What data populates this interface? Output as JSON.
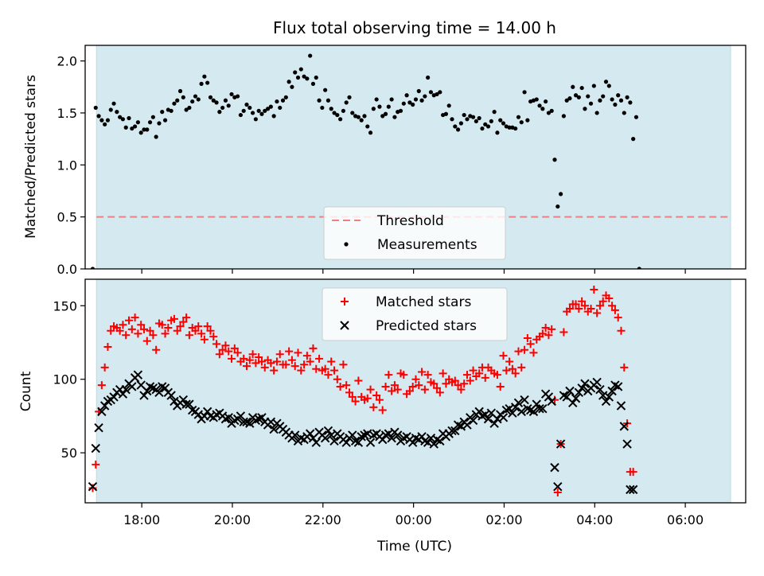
{
  "chart_data": [
    {
      "type": "scatter",
      "title": "Flux total observing time = 14.00 h",
      "xlabel": "",
      "ylabel": "Matched/Predicted stars",
      "xlim": [
        "16:45",
        "07:20"
      ],
      "ylim": [
        0,
        2.15
      ],
      "yticks": [
        "0.0",
        "0.5",
        "1.0",
        "1.5",
        "2.0"
      ],
      "shaded_interval": [
        "17:00",
        "07:00"
      ],
      "shade_color": "#d4eaf0",
      "threshold": {
        "name": "Threshold",
        "value": 0.5,
        "color": "#f08080"
      },
      "legend": {
        "position": "lower-center",
        "entries": [
          "Threshold",
          "Measurements"
        ]
      },
      "series": [
        {
          "name": "Measurements",
          "color": "#000000",
          "x_start": "16:55",
          "x_step_min": 4,
          "values": [
            0.0,
            1.55,
            1.47,
            1.43,
            1.39,
            1.43,
            1.53,
            1.59,
            1.51,
            1.46,
            1.44,
            1.36,
            1.45,
            1.35,
            1.37,
            1.41,
            1.31,
            1.34,
            1.34,
            1.41,
            1.46,
            1.27,
            1.4,
            1.51,
            1.43,
            1.53,
            1.52,
            1.59,
            1.62,
            1.71,
            1.65,
            1.53,
            1.55,
            1.61,
            1.66,
            1.63,
            1.78,
            1.85,
            1.79,
            1.65,
            1.62,
            1.6,
            1.51,
            1.55,
            1.62,
            1.57,
            1.68,
            1.65,
            1.66,
            1.48,
            1.52,
            1.58,
            1.55,
            1.5,
            1.44,
            1.52,
            1.49,
            1.52,
            1.54,
            1.56,
            1.47,
            1.61,
            1.55,
            1.62,
            1.65,
            1.8,
            1.75,
            1.89,
            1.84,
            1.92,
            1.85,
            1.83,
            2.05,
            1.78,
            1.84,
            1.62,
            1.55,
            1.72,
            1.62,
            1.54,
            1.5,
            1.48,
            1.44,
            1.52,
            1.6,
            1.65,
            1.5,
            1.47,
            1.46,
            1.43,
            1.47,
            1.37,
            1.31,
            1.54,
            1.63,
            1.56,
            1.47,
            1.49,
            1.56,
            1.63,
            1.46,
            1.51,
            1.52,
            1.59,
            1.67,
            1.6,
            1.58,
            1.63,
            1.71,
            1.62,
            1.66,
            1.84,
            1.7,
            1.67,
            1.68,
            1.7,
            1.48,
            1.49,
            1.57,
            1.44,
            1.37,
            1.34,
            1.4,
            1.48,
            1.44,
            1.47,
            1.46,
            1.42,
            1.45,
            1.35,
            1.39,
            1.37,
            1.42,
            1.51,
            1.31,
            1.43,
            1.4,
            1.37,
            1.36,
            1.36,
            1.35,
            1.46,
            1.41,
            1.7,
            1.43,
            1.61,
            1.62,
            1.63,
            1.57,
            1.54,
            1.61,
            1.5,
            1.52,
            1.05,
            0.6,
            0.72,
            1.47,
            1.62,
            1.64,
            1.75,
            1.67,
            1.65,
            1.74,
            1.54,
            1.66,
            1.59,
            1.76,
            1.5,
            1.62,
            1.66,
            1.8,
            1.76,
            1.63,
            1.58,
            1.67,
            1.62,
            1.5,
            1.65,
            1.6,
            1.25,
            1.46,
            0.0
          ]
        }
      ]
    },
    {
      "type": "scatter",
      "title": "",
      "xlabel": "Time (UTC)",
      "ylabel": "Count",
      "xlim": [
        "16:45",
        "07:20"
      ],
      "ylim": [
        16,
        168
      ],
      "yticks": [
        "50",
        "100",
        "150"
      ],
      "xticks": [
        "18:00",
        "20:00",
        "22:00",
        "00:00",
        "02:00",
        "04:00",
        "06:00"
      ],
      "shaded_interval": [
        "17:00",
        "07:00"
      ],
      "shade_color": "#d4eaf0",
      "legend": {
        "position": "upper-center",
        "entries": [
          "Matched stars",
          "Predicted stars"
        ]
      },
      "series": [
        {
          "name": "Matched stars",
          "marker": "+",
          "color": "#ff0000",
          "x_start": "16:55",
          "x_step_min": 4,
          "values": [
            26,
            42,
            78,
            96,
            108,
            122,
            133,
            136,
            135,
            133,
            137,
            130,
            140,
            134,
            142,
            131,
            137,
            134,
            126,
            133,
            130,
            120,
            138,
            137,
            131,
            135,
            140,
            141,
            133,
            136,
            139,
            142,
            130,
            135,
            133,
            136,
            131,
            127,
            136,
            133,
            129,
            124,
            117,
            120,
            123,
            119,
            114,
            121,
            118,
            112,
            114,
            109,
            113,
            117,
            111,
            115,
            112,
            108,
            113,
            111,
            106,
            112,
            117,
            110,
            110,
            119,
            113,
            109,
            118,
            106,
            110,
            116,
            112,
            121,
            107,
            114,
            106,
            107,
            103,
            112,
            106,
            100,
            95,
            110,
            96,
            91,
            88,
            85,
            99,
            88,
            86,
            87,
            93,
            81,
            89,
            86,
            79,
            95,
            103,
            92,
            96,
            93,
            104,
            103,
            90,
            92,
            95,
            100,
            96,
            105,
            93,
            103,
            98,
            97,
            94,
            91,
            104,
            97,
            100,
            98,
            99,
            96,
            93,
            97,
            103,
            99,
            106,
            102,
            104,
            108,
            101,
            108,
            106,
            104,
            103,
            95,
            116,
            106,
            112,
            107,
            104,
            119,
            108,
            120,
            128,
            124,
            118,
            127,
            129,
            131,
            135,
            130,
            134,
            86,
            23,
            56,
            132,
            146,
            148,
            151,
            151,
            148,
            153,
            150,
            146,
            148,
            161,
            145,
            150,
            153,
            157,
            155,
            150,
            147,
            142,
            133,
            108,
            70,
            37,
            37
          ]
        },
        {
          "name": "Predicted stars",
          "marker": "x",
          "color": "#000000",
          "x_start": "16:55",
          "x_step_min": 4,
          "values": [
            27,
            53,
            67,
            78,
            82,
            85,
            86,
            88,
            91,
            93,
            90,
            93,
            97,
            95,
            101,
            103,
            96,
            89,
            92,
            95,
            94,
            93,
            91,
            95,
            94,
            91,
            89,
            85,
            82,
            84,
            86,
            83,
            83,
            79,
            78,
            76,
            73,
            75,
            78,
            75,
            74,
            76,
            77,
            75,
            73,
            74,
            70,
            72,
            73,
            75,
            71,
            71,
            70,
            74,
            72,
            73,
            74,
            71,
            69,
            71,
            66,
            70,
            68,
            66,
            64,
            62,
            60,
            62,
            58,
            60,
            59,
            61,
            63,
            60,
            57,
            64,
            62,
            60,
            65,
            62,
            58,
            63,
            61,
            59,
            57,
            60,
            62,
            58,
            57,
            61,
            62,
            63,
            57,
            62,
            63,
            61,
            59,
            62,
            63,
            60,
            64,
            62,
            58,
            60,
            61,
            59,
            57,
            60,
            59,
            61,
            58,
            57,
            60,
            56,
            59,
            58,
            63,
            61,
            63,
            65,
            65,
            69,
            68,
            71,
            69,
            74,
            72,
            76,
            78,
            75,
            76,
            73,
            77,
            70,
            73,
            76,
            74,
            79,
            80,
            77,
            81,
            84,
            78,
            86,
            80,
            79,
            78,
            83,
            80,
            80,
            90,
            88,
            85,
            40,
            27,
            56,
            89,
            88,
            92,
            84,
            87,
            91,
            94,
            97,
            92,
            94,
            96,
            98,
            93,
            89,
            85,
            88,
            92,
            96,
            95,
            82,
            68,
            56,
            25,
            25
          ]
        }
      ]
    }
  ]
}
